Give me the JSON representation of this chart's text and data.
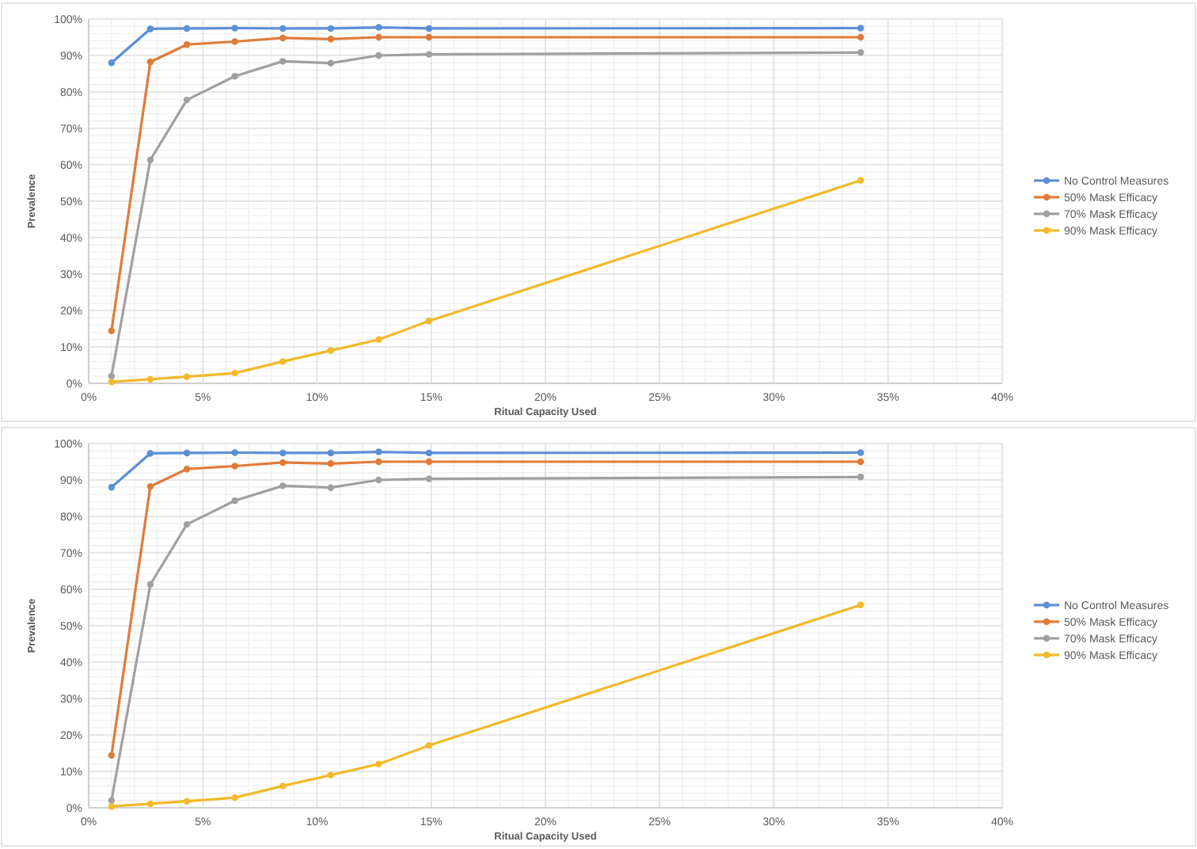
{
  "chart_data": [
    {
      "type": "line",
      "xlabel": "Ritual Capacity Used",
      "ylabel": "Prevalence",
      "x": [
        1.0,
        2.7,
        4.3,
        6.4,
        8.5,
        10.6,
        12.7,
        14.9,
        33.8
      ],
      "xlim": [
        0,
        40
      ],
      "ylim": [
        0,
        100
      ],
      "xticks": [
        {
          "value": 0,
          "label": "0%"
        },
        {
          "value": 5,
          "label": "5%"
        },
        {
          "value": 10,
          "label": "10%"
        },
        {
          "value": 15,
          "label": "15%"
        },
        {
          "value": 20,
          "label": "20%"
        },
        {
          "value": 25,
          "label": "25%"
        },
        {
          "value": 30,
          "label": "30%"
        },
        {
          "value": 35,
          "label": "35%"
        },
        {
          "value": 40,
          "label": "40%"
        }
      ],
      "yticks": [
        {
          "value": 0,
          "label": "0%"
        },
        {
          "value": 10,
          "label": "10%"
        },
        {
          "value": 20,
          "label": "20%"
        },
        {
          "value": 30,
          "label": "30%"
        },
        {
          "value": 40,
          "label": "40%"
        },
        {
          "value": 50,
          "label": "50%"
        },
        {
          "value": 60,
          "label": "60%"
        },
        {
          "value": 70,
          "label": "70%"
        },
        {
          "value": 80,
          "label": "80%"
        },
        {
          "value": 90,
          "label": "90%"
        },
        {
          "value": 100,
          "label": "100%"
        }
      ],
      "grid": true,
      "legend": "right",
      "marker": "circle",
      "series": [
        {
          "name": "No Control Measures",
          "color": "#5b8fd6",
          "values": [
            88,
            97.3,
            97.4,
            97.5,
            97.4,
            97.4,
            97.7,
            97.4,
            97.5
          ]
        },
        {
          "name": "50% Mask Efficacy",
          "color": "#e07b39",
          "values": [
            14.4,
            88.2,
            93,
            93.8,
            94.8,
            94.5,
            95,
            95,
            95
          ]
        },
        {
          "name": "70% Mask Efficacy",
          "color": "#a0a0a0",
          "values": [
            2,
            61.3,
            77.8,
            84.3,
            88.4,
            87.9,
            90,
            90.3,
            90.8
          ]
        },
        {
          "name": "90% Mask Efficacy",
          "color": "#f2b92a",
          "values": [
            0.4,
            1.1,
            1.8,
            2.8,
            6,
            9,
            12,
            17.1,
            55.7
          ]
        }
      ]
    },
    {
      "type": "line",
      "xlabel": "Ritual Capacity Used",
      "ylabel": "Prevalence",
      "x": [
        1.0,
        2.7,
        4.3,
        6.4,
        8.5,
        10.6,
        12.7,
        14.9,
        33.8
      ],
      "xlim": [
        0,
        40
      ],
      "ylim": [
        0,
        100
      ],
      "xticks": [
        {
          "value": 0,
          "label": "0%"
        },
        {
          "value": 5,
          "label": "5%"
        },
        {
          "value": 10,
          "label": "10%"
        },
        {
          "value": 15,
          "label": "15%"
        },
        {
          "value": 20,
          "label": "20%"
        },
        {
          "value": 25,
          "label": "25%"
        },
        {
          "value": 30,
          "label": "30%"
        },
        {
          "value": 35,
          "label": "35%"
        },
        {
          "value": 40,
          "label": "40%"
        }
      ],
      "yticks": [
        {
          "value": 0,
          "label": "0%"
        },
        {
          "value": 10,
          "label": "10%"
        },
        {
          "value": 20,
          "label": "20%"
        },
        {
          "value": 30,
          "label": "30%"
        },
        {
          "value": 40,
          "label": "40%"
        },
        {
          "value": 50,
          "label": "50%"
        },
        {
          "value": 60,
          "label": "60%"
        },
        {
          "value": 70,
          "label": "70%"
        },
        {
          "value": 80,
          "label": "80%"
        },
        {
          "value": 90,
          "label": "90%"
        },
        {
          "value": 100,
          "label": "100%"
        }
      ],
      "grid": true,
      "legend": "right",
      "marker": "circle",
      "series": [
        {
          "name": "No Control Measures",
          "color": "#5b8fd6",
          "values": [
            88,
            97.3,
            97.4,
            97.5,
            97.4,
            97.4,
            97.7,
            97.4,
            97.5
          ]
        },
        {
          "name": "50% Mask Efficacy",
          "color": "#e07b39",
          "values": [
            14.4,
            88.2,
            93,
            93.8,
            94.8,
            94.5,
            95,
            95,
            95
          ]
        },
        {
          "name": "70% Mask Efficacy",
          "color": "#a0a0a0",
          "values": [
            2,
            61.3,
            77.8,
            84.3,
            88.4,
            87.9,
            90,
            90.3,
            90.8
          ]
        },
        {
          "name": "90% Mask Efficacy",
          "color": "#f2b92a",
          "values": [
            0.4,
            1.1,
            1.8,
            2.8,
            6,
            9,
            12,
            17.1,
            55.7
          ]
        }
      ]
    }
  ]
}
